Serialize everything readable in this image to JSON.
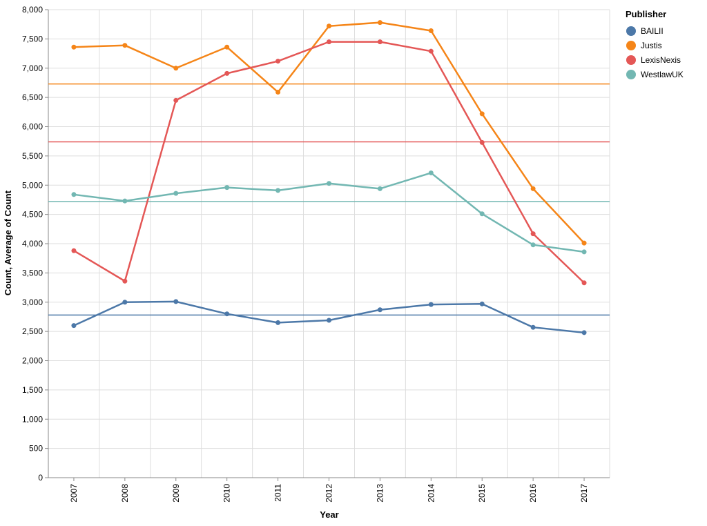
{
  "chart_data": {
    "type": "line",
    "xlabel": "Year",
    "ylabel": "Count, Average of Count",
    "categories": [
      "2007",
      "2008",
      "2009",
      "2010",
      "2011",
      "2012",
      "2013",
      "2014",
      "2015",
      "2016",
      "2017"
    ],
    "y_ticks": [
      "0",
      "500",
      "1,000",
      "1,500",
      "2,000",
      "2,500",
      "3,000",
      "3,500",
      "4,000",
      "4,500",
      "5,000",
      "5,500",
      "6,000",
      "6,500",
      "7,000",
      "7,500",
      "8,000"
    ],
    "ylim": [
      0,
      8000
    ],
    "grid": true,
    "legend": {
      "title": "Publisher",
      "position": "right"
    },
    "series": [
      {
        "name": "BAILII",
        "color": "#4c78a8",
        "values": [
          2600,
          3000,
          3010,
          2800,
          2650,
          2690,
          2870,
          2960,
          2970,
          2570,
          2480
        ],
        "average": 2780
      },
      {
        "name": "Justis",
        "color": "#f58518",
        "values": [
          7360,
          7390,
          7000,
          7360,
          6590,
          7720,
          7780,
          7640,
          6220,
          4940,
          4010
        ],
        "average": 6730
      },
      {
        "name": "LexisNexis",
        "color": "#e45756",
        "values": [
          3880,
          3360,
          6450,
          6910,
          7120,
          7450,
          7450,
          7290,
          5730,
          4170,
          3330
        ],
        "average": 5740
      },
      {
        "name": "WestlawUK",
        "color": "#72b7b2",
        "values": [
          4840,
          4730,
          4860,
          4960,
          4910,
          5030,
          4940,
          5210,
          4510,
          3980,
          3860
        ],
        "average": 4720
      }
    ]
  }
}
